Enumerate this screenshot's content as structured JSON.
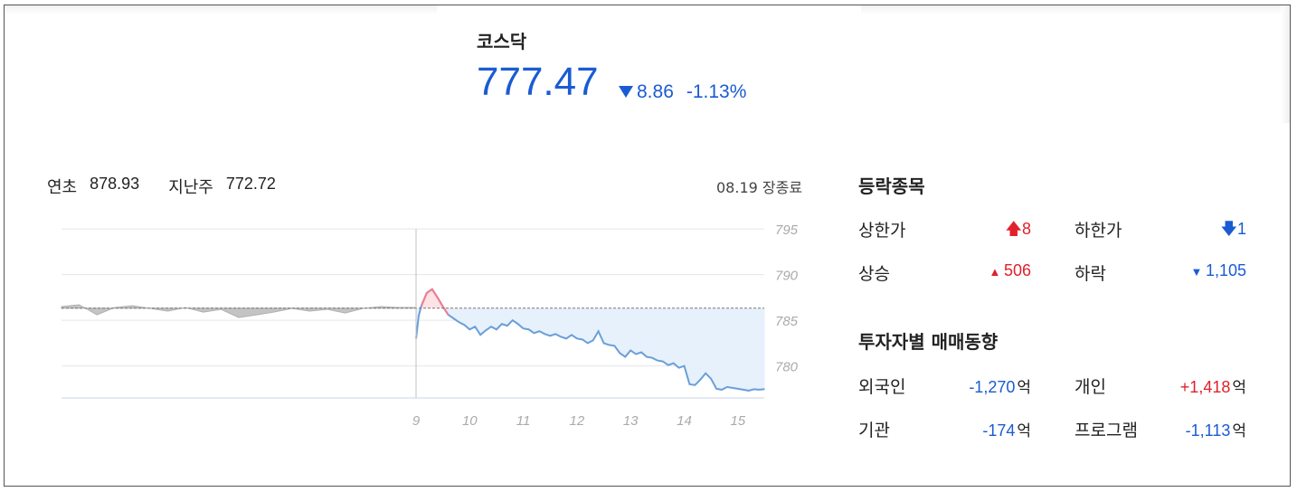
{
  "index": {
    "name": "코스닥",
    "value": "777.47",
    "change": "8.86",
    "change_pct": "-1.13%"
  },
  "summary": {
    "ytd_label": "연초",
    "ytd_value": "878.93",
    "lastweek_label": "지난주",
    "lastweek_value": "772.72",
    "status": "08.19 장종료"
  },
  "chart_data": {
    "type": "line",
    "x_ticks": [
      "9",
      "10",
      "11",
      "12",
      "13",
      "14",
      "15"
    ],
    "y_ticks": [
      "795",
      "790",
      "785",
      "780"
    ],
    "ylim": [
      776.5,
      796.5
    ],
    "baseline": 786.33,
    "today_series": {
      "x": [
        9.0,
        9.05,
        9.1,
        9.2,
        9.3,
        9.4,
        9.5,
        9.6,
        9.7,
        9.8,
        9.9,
        10.0,
        10.1,
        10.2,
        10.3,
        10.4,
        10.5,
        10.6,
        10.7,
        10.8,
        10.9,
        11.0,
        11.1,
        11.2,
        11.3,
        11.4,
        11.5,
        11.6,
        11.7,
        11.8,
        11.9,
        12.0,
        12.1,
        12.2,
        12.3,
        12.4,
        12.5,
        12.6,
        12.7,
        12.8,
        12.9,
        13.0,
        13.1,
        13.2,
        13.3,
        13.4,
        13.5,
        13.6,
        13.7,
        13.8,
        13.9,
        14.0,
        14.1,
        14.2,
        14.3,
        14.4,
        14.5,
        14.6,
        14.7,
        14.8,
        14.9,
        15.0,
        15.1,
        15.2,
        15.3,
        15.4,
        15.5
      ],
      "y": [
        783.0,
        785.5,
        786.6,
        788.0,
        788.4,
        787.5,
        786.5,
        785.6,
        785.2,
        784.8,
        784.5,
        784.0,
        784.3,
        783.4,
        783.9,
        784.3,
        784.0,
        784.6,
        784.4,
        785.0,
        784.6,
        784.1,
        784.0,
        783.6,
        783.8,
        783.5,
        783.3,
        783.5,
        783.2,
        783.0,
        783.4,
        783.0,
        782.9,
        782.5,
        782.8,
        783.8,
        782.5,
        782.3,
        782.2,
        781.4,
        781.0,
        781.7,
        781.3,
        781.5,
        781.0,
        780.9,
        780.6,
        780.5,
        780.1,
        780.3,
        779.8,
        780.0,
        778.0,
        777.9,
        778.5,
        779.2,
        778.6,
        777.5,
        777.4,
        777.7,
        777.6,
        777.5,
        777.4,
        777.3,
        777.45,
        777.4,
        777.47
      ]
    },
    "prev_series": {
      "x": [
        0.0,
        0.05,
        0.1,
        0.15,
        0.2,
        0.25,
        0.3,
        0.35,
        0.4,
        0.45,
        0.5,
        0.55,
        0.6,
        0.65,
        0.7,
        0.75,
        0.8,
        0.85,
        0.9,
        0.95,
        1.0
      ],
      "y": [
        786.5,
        786.7,
        785.6,
        786.4,
        786.6,
        786.3,
        786.0,
        786.4,
        785.9,
        786.2,
        785.3,
        785.6,
        785.9,
        786.3,
        786.0,
        786.2,
        785.8,
        786.3,
        786.5,
        786.4,
        786.4
      ]
    }
  },
  "panel": {
    "rise_fall_title": "등락종목",
    "upper_limit_label": "상한가",
    "upper_limit_value": "8",
    "lower_limit_label": "하한가",
    "lower_limit_value": "1",
    "rise_label": "상승",
    "rise_value": "506",
    "fall_label": "하락",
    "fall_value": "1,105",
    "investor_title": "투자자별 매매동향",
    "foreign_label": "외국인",
    "foreign_value": "-1,270",
    "individual_label": "개인",
    "individual_value": "+1,418",
    "institution_label": "기관",
    "institution_value": "-174",
    "program_label": "프로그램",
    "program_value": "-1,113",
    "unit": "억"
  },
  "colors": {
    "up": "#e0212b",
    "down": "#1a5bd3",
    "line": "#6a9fd8",
    "fill": "#e6f1fc",
    "grey": "#b5b5b5",
    "pink": "#f27a8d"
  }
}
